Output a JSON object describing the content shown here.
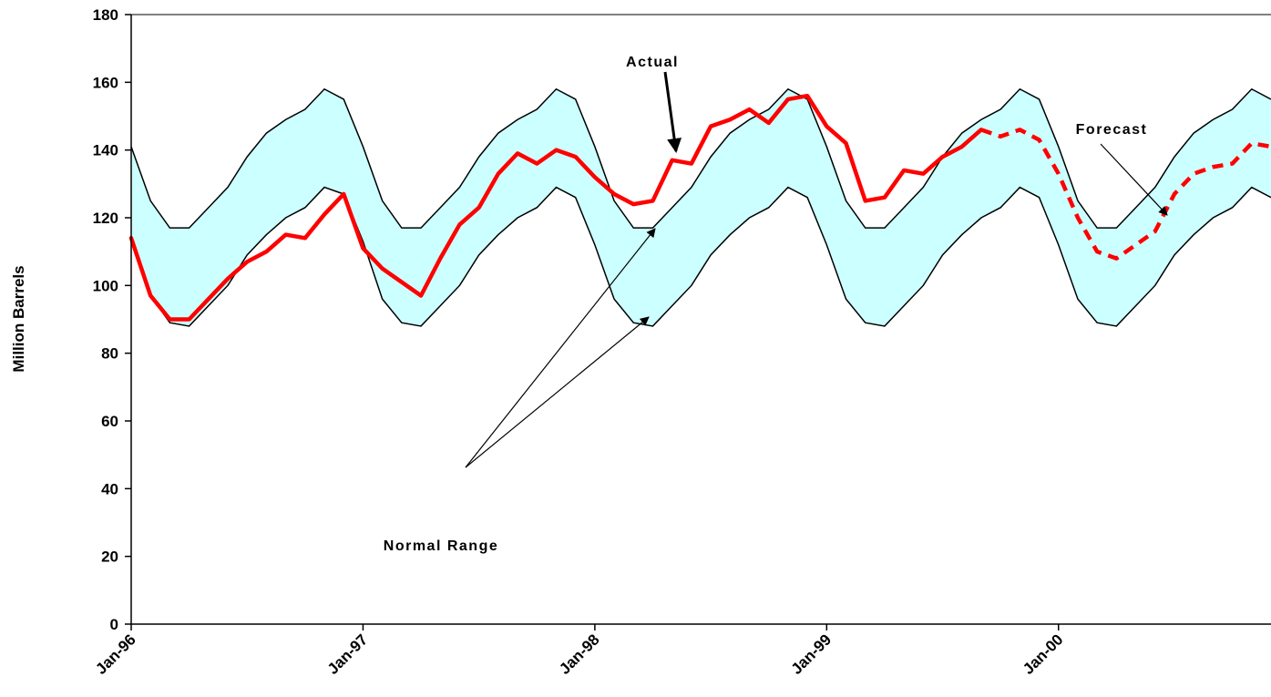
{
  "chart_data": {
    "type": "area",
    "xlabel": "",
    "ylabel": "Million Barrels",
    "ylim": [
      0,
      180
    ],
    "xlim": [
      "Jan-96",
      "Dec-00"
    ],
    "x_tick_labels": [
      "Jan-96",
      "Jan-97",
      "Jan-98",
      "Jan-99",
      "Jan-00"
    ],
    "y_tick_labels": [
      "0",
      "20",
      "40",
      "60",
      "80",
      "100",
      "120",
      "140",
      "160",
      "180"
    ],
    "grid": false,
    "legend": "none",
    "colors": {
      "band_fill": "#ccffff",
      "band_edge": "#000000",
      "actual": "#ff0000",
      "forecast": "#ff0000"
    },
    "months": [
      "Jan-96",
      "Feb-96",
      "Mar-96",
      "Apr-96",
      "May-96",
      "Jun-96",
      "Jul-96",
      "Aug-96",
      "Sep-96",
      "Oct-96",
      "Nov-96",
      "Dec-96",
      "Jan-97",
      "Feb-97",
      "Mar-97",
      "Apr-97",
      "May-97",
      "Jun-97",
      "Jul-97",
      "Aug-97",
      "Sep-97",
      "Oct-97",
      "Nov-97",
      "Dec-97",
      "Jan-98",
      "Feb-98",
      "Mar-98",
      "Apr-98",
      "May-98",
      "Jun-98",
      "Jul-98",
      "Aug-98",
      "Sep-98",
      "Oct-98",
      "Nov-98",
      "Dec-98",
      "Jan-99",
      "Feb-99",
      "Mar-99",
      "Apr-99",
      "May-99",
      "Jun-99",
      "Jul-99",
      "Aug-99",
      "Sep-99",
      "Oct-99",
      "Nov-99",
      "Dec-99",
      "Jan-00",
      "Feb-00",
      "Mar-00",
      "Apr-00",
      "May-00",
      "Jun-00",
      "Jul-00",
      "Aug-00",
      "Sep-00",
      "Oct-00",
      "Nov-00",
      "Dec-00"
    ],
    "series": [
      {
        "name": "Normal Range (upper)",
        "role": "band_upper",
        "values": [
          141,
          125,
          117,
          117,
          123,
          129,
          138,
          145,
          149,
          152,
          158,
          155,
          141,
          125,
          117,
          117,
          123,
          129,
          138,
          145,
          149,
          152,
          158,
          155,
          141,
          125,
          117,
          117,
          123,
          129,
          138,
          145,
          149,
          152,
          158,
          155,
          141,
          125,
          117,
          117,
          123,
          129,
          138,
          145,
          149,
          152,
          158,
          155,
          141,
          125,
          117,
          117,
          123,
          129,
          138,
          145,
          149,
          152,
          158,
          155
        ]
      },
      {
        "name": "Normal Range (lower)",
        "role": "band_lower",
        "values": [
          114,
          97,
          89,
          88,
          94,
          100,
          109,
          115,
          120,
          123,
          129,
          127,
          113,
          96,
          89,
          88,
          94,
          100,
          109,
          115,
          120,
          123,
          129,
          126,
          112,
          96,
          89,
          88,
          94,
          100,
          109,
          115,
          120,
          123,
          129,
          126,
          112,
          96,
          89,
          88,
          94,
          100,
          109,
          115,
          120,
          123,
          129,
          126,
          112,
          96,
          89,
          88,
          94,
          100,
          109,
          115,
          120,
          123,
          129,
          126
        ]
      },
      {
        "name": "Actual",
        "role": "actual",
        "values": [
          114,
          97,
          90,
          90,
          96,
          102,
          107,
          110,
          115,
          114,
          121,
          127,
          111,
          105,
          101,
          97,
          108,
          118,
          123,
          133,
          139,
          136,
          140,
          138,
          132,
          127,
          124,
          125,
          137,
          136,
          147,
          149,
          152,
          148,
          155,
          156,
          147,
          142,
          125,
          126,
          134,
          133,
          138,
          141,
          146,
          null,
          null,
          null,
          null,
          null,
          null,
          null,
          null,
          null,
          null,
          null,
          null,
          null,
          null,
          null
        ]
      },
      {
        "name": "Forecast",
        "role": "forecast",
        "values": [
          null,
          null,
          null,
          null,
          null,
          null,
          null,
          null,
          null,
          null,
          null,
          null,
          null,
          null,
          null,
          null,
          null,
          null,
          null,
          null,
          null,
          null,
          null,
          null,
          null,
          null,
          null,
          null,
          null,
          null,
          null,
          null,
          null,
          null,
          null,
          null,
          null,
          null,
          null,
          null,
          null,
          null,
          null,
          null,
          146,
          144,
          146,
          143,
          133,
          120,
          110,
          108,
          112,
          116,
          127,
          133,
          135,
          136,
          142,
          141
        ]
      }
    ],
    "annotations": [
      {
        "text": "Actual"
      },
      {
        "text": "Forecast"
      },
      {
        "text": "Normal Range"
      }
    ]
  }
}
